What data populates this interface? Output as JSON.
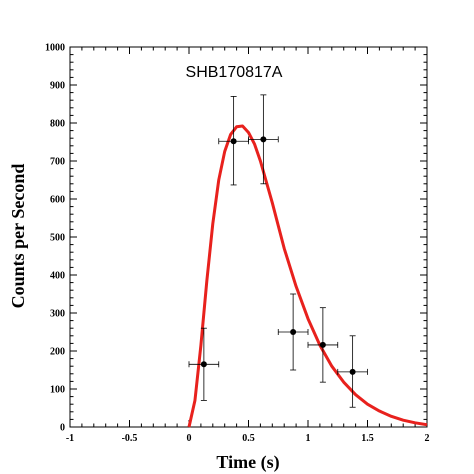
{
  "chart_data": {
    "type": "scatter",
    "title": "SHB170817A",
    "xlabel": "Time (s)",
    "ylabel": "Counts per Second",
    "xlim": [
      -1,
      2
    ],
    "ylim": [
      0,
      1000
    ],
    "x_ticks": [
      "-1",
      "-0.5",
      "0",
      "0.5",
      "1",
      "1.5",
      "2"
    ],
    "y_ticks": [
      "0",
      "100",
      "200",
      "300",
      "400",
      "500",
      "600",
      "700",
      "800",
      "900",
      "1000"
    ],
    "grid": false,
    "colors": {
      "fit_line": "#e8211d",
      "points": "#000000"
    },
    "series": [
      {
        "type": "scatter_errorbar",
        "points": [
          {
            "x": 0.125,
            "y": 165,
            "xerr": 0.125,
            "yerr_low": 95,
            "yerr_high": 95
          },
          {
            "x": 0.375,
            "y": 752,
            "xerr": 0.125,
            "yerr_low": 115,
            "yerr_high": 118
          },
          {
            "x": 0.625,
            "y": 757,
            "xerr": 0.125,
            "yerr_low": 117,
            "yerr_high": 117
          },
          {
            "x": 0.875,
            "y": 250,
            "xerr": 0.125,
            "yerr_low": 100,
            "yerr_high": 100
          },
          {
            "x": 1.125,
            "y": 216,
            "xerr": 0.125,
            "yerr_low": 98,
            "yerr_high": 98
          },
          {
            "x": 1.375,
            "y": 145,
            "xerr": 0.125,
            "yerr_low": 93,
            "yerr_high": 95
          }
        ]
      },
      {
        "type": "line",
        "points": [
          [
            0,
            0
          ],
          [
            0.05,
            70
          ],
          [
            0.1,
            215
          ],
          [
            0.15,
            385
          ],
          [
            0.2,
            535
          ],
          [
            0.25,
            650
          ],
          [
            0.3,
            725
          ],
          [
            0.35,
            770
          ],
          [
            0.4,
            790
          ],
          [
            0.45,
            792
          ],
          [
            0.5,
            775
          ],
          [
            0.55,
            745
          ],
          [
            0.6,
            700
          ],
          [
            0.65,
            645
          ],
          [
            0.7,
            590
          ],
          [
            0.75,
            530
          ],
          [
            0.8,
            470
          ],
          [
            0.9,
            370
          ],
          [
            1.0,
            285
          ],
          [
            1.1,
            215
          ],
          [
            1.2,
            160
          ],
          [
            1.3,
            118
          ],
          [
            1.4,
            85
          ],
          [
            1.5,
            60
          ],
          [
            1.6,
            42
          ],
          [
            1.7,
            28
          ],
          [
            1.8,
            18
          ],
          [
            1.9,
            11
          ],
          [
            2.0,
            6
          ]
        ]
      }
    ]
  }
}
